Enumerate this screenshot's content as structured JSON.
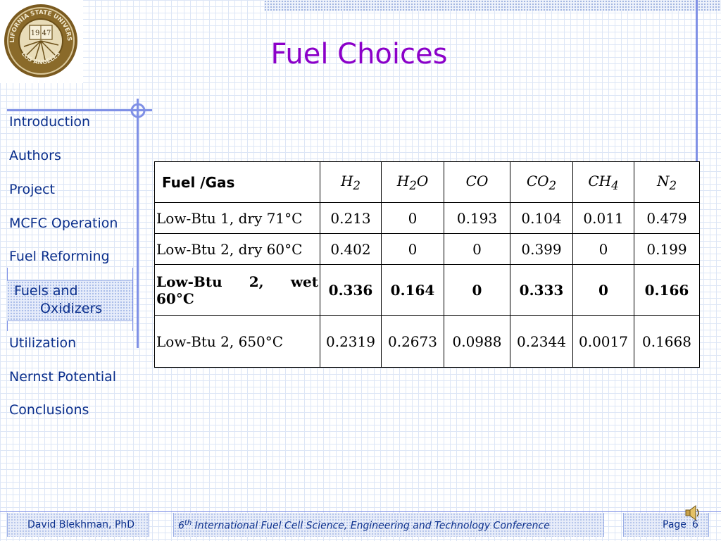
{
  "logo": {
    "text_top": "CALIFORNIA STATE UNIVERSITY",
    "text_bottom": "LOS ANGELES",
    "year_left": "19",
    "year_right": "47"
  },
  "title": "Fuel Choices",
  "nav": {
    "items": [
      {
        "label": "Introduction"
      },
      {
        "label": "Authors"
      },
      {
        "label": "Project"
      },
      {
        "label": "MCFC Operation"
      },
      {
        "label": "Fuel Reforming"
      },
      {
        "label": "Fuels and"
      },
      {
        "label": "Utilization"
      },
      {
        "label": "Nernst Potential"
      },
      {
        "label": "Conclusions"
      }
    ],
    "selected_line2": "Oxidizers"
  },
  "table": {
    "header_first": "Fuel /Gas",
    "columns": [
      {
        "base": "H",
        "sub": "2",
        "tail": ""
      },
      {
        "base": "H",
        "sub": "2",
        "tail": "O"
      },
      {
        "base": "CO",
        "sub": "",
        "tail": ""
      },
      {
        "base": "CO",
        "sub": "2",
        "tail": ""
      },
      {
        "base": "CH",
        "sub": "4",
        "tail": ""
      },
      {
        "base": "N",
        "sub": "2",
        "tail": ""
      }
    ],
    "rows": [
      {
        "label": "Low-Btu 1, dry 71°C",
        "values": [
          "0.213",
          "0",
          "0.193",
          "0.104",
          "0.011",
          "0.479"
        ]
      },
      {
        "label": "Low-Btu 2, dry 60°C",
        "values": [
          "0.402",
          "0",
          "0",
          "0.399",
          "0",
          "0.199"
        ]
      },
      {
        "label_line1": [
          "Low-Btu",
          "2,",
          "wet"
        ],
        "label_line2": "60°C",
        "values": [
          "0.336",
          "0.164",
          "0",
          "0.333",
          "0",
          "0.166"
        ]
      },
      {
        "label": "Low-Btu 2, 650°C",
        "values": [
          "0.2319",
          "0.2673",
          "0.0988",
          "0.2344",
          "0.0017",
          "0.1668"
        ]
      }
    ]
  },
  "footer": {
    "author": "David Blekhman, PhD",
    "conf_num": "6",
    "conf_sup": "th",
    "conf_text": " International Fuel Cell Science, Engineering and Technology Conference",
    "page_label": "Page",
    "page_num": "6"
  },
  "colors": {
    "title": "#8b00c9",
    "nav_text": "#0b2f8c",
    "accent_lines": "#7f90e6"
  },
  "icons": [
    "university-seal-icon",
    "speaker-icon"
  ]
}
